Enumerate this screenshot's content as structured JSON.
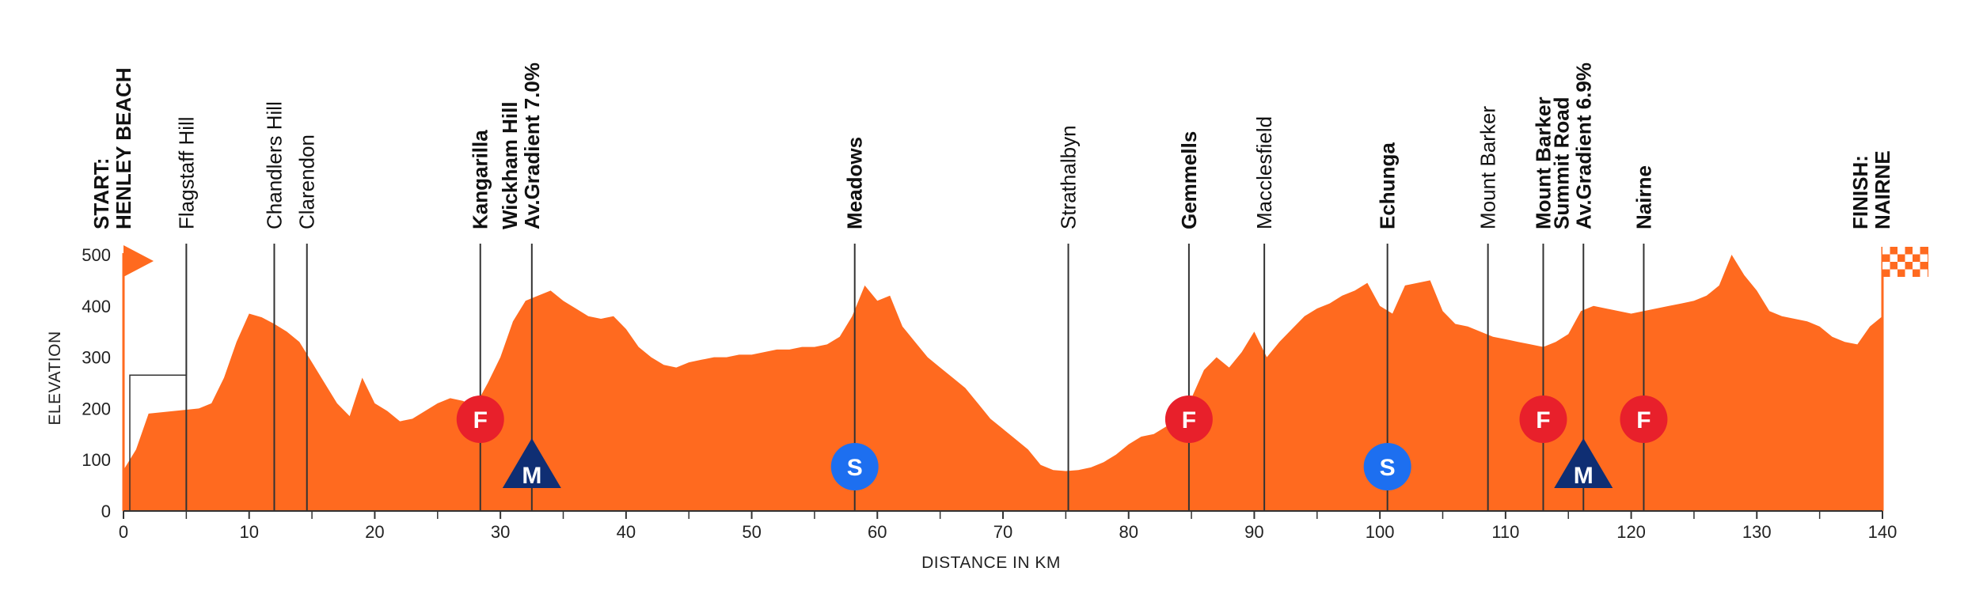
{
  "chart_data": {
    "type": "area",
    "xlabel": "DISTANCE IN KM",
    "ylabel": "ELEVATION",
    "xlim": [
      0,
      140
    ],
    "ylim": [
      0,
      500
    ],
    "xticks": [
      0,
      10,
      20,
      30,
      40,
      50,
      60,
      70,
      80,
      90,
      100,
      110,
      120,
      130,
      140
    ],
    "yticks": [
      0,
      100,
      200,
      300,
      400,
      500
    ],
    "grid": "horizontal",
    "colors": {
      "fill": "#ff6a1f",
      "line": "#333333",
      "sprint": "#e8202b",
      "kom": "#0f2e73",
      "feed": "#1d6ff0"
    },
    "profile": [
      [
        0,
        80
      ],
      [
        1,
        120
      ],
      [
        2,
        190
      ],
      [
        4,
        195
      ],
      [
        6,
        200
      ],
      [
        7,
        210
      ],
      [
        8,
        260
      ],
      [
        9,
        330
      ],
      [
        10,
        385
      ],
      [
        11,
        378
      ],
      [
        12,
        365
      ],
      [
        13,
        350
      ],
      [
        14,
        330
      ],
      [
        15,
        290
      ],
      [
        16,
        250
      ],
      [
        17,
        210
      ],
      [
        18,
        185
      ],
      [
        19,
        260
      ],
      [
        20,
        210
      ],
      [
        21,
        195
      ],
      [
        22,
        175
      ],
      [
        23,
        180
      ],
      [
        24,
        195
      ],
      [
        25,
        210
      ],
      [
        26,
        220
      ],
      [
        27,
        215
      ],
      [
        28,
        205
      ],
      [
        29,
        250
      ],
      [
        30,
        300
      ],
      [
        31,
        370
      ],
      [
        32,
        410
      ],
      [
        33,
        420
      ],
      [
        34,
        430
      ],
      [
        35,
        410
      ],
      [
        36,
        395
      ],
      [
        37,
        380
      ],
      [
        38,
        375
      ],
      [
        39,
        380
      ],
      [
        40,
        355
      ],
      [
        41,
        320
      ],
      [
        42,
        300
      ],
      [
        43,
        285
      ],
      [
        44,
        280
      ],
      [
        45,
        290
      ],
      [
        46,
        295
      ],
      [
        47,
        300
      ],
      [
        48,
        300
      ],
      [
        49,
        305
      ],
      [
        50,
        305
      ],
      [
        51,
        310
      ],
      [
        52,
        315
      ],
      [
        53,
        315
      ],
      [
        54,
        320
      ],
      [
        55,
        320
      ],
      [
        56,
        325
      ],
      [
        57,
        340
      ],
      [
        58,
        380
      ],
      [
        59,
        440
      ],
      [
        60,
        410
      ],
      [
        61,
        420
      ],
      [
        62,
        360
      ],
      [
        63,
        330
      ],
      [
        64,
        300
      ],
      [
        65,
        280
      ],
      [
        66,
        260
      ],
      [
        67,
        240
      ],
      [
        68,
        210
      ],
      [
        69,
        180
      ],
      [
        70,
        160
      ],
      [
        71,
        140
      ],
      [
        72,
        120
      ],
      [
        73,
        90
      ],
      [
        74,
        80
      ],
      [
        75,
        78
      ],
      [
        76,
        80
      ],
      [
        77,
        85
      ],
      [
        78,
        95
      ],
      [
        79,
        110
      ],
      [
        80,
        130
      ],
      [
        81,
        145
      ],
      [
        82,
        150
      ],
      [
        83,
        165
      ],
      [
        84,
        185
      ],
      [
        85,
        220
      ],
      [
        86,
        275
      ],
      [
        87,
        300
      ],
      [
        88,
        280
      ],
      [
        89,
        310
      ],
      [
        90,
        350
      ],
      [
        91,
        300
      ],
      [
        92,
        330
      ],
      [
        93,
        355
      ],
      [
        94,
        380
      ],
      [
        95,
        395
      ],
      [
        96,
        405
      ],
      [
        97,
        420
      ],
      [
        98,
        430
      ],
      [
        99,
        445
      ],
      [
        100,
        400
      ],
      [
        101,
        385
      ],
      [
        102,
        440
      ],
      [
        103,
        445
      ],
      [
        104,
        450
      ],
      [
        105,
        390
      ],
      [
        106,
        365
      ],
      [
        107,
        360
      ],
      [
        108,
        350
      ],
      [
        109,
        340
      ],
      [
        110,
        335
      ],
      [
        111,
        330
      ],
      [
        112,
        325
      ],
      [
        113,
        320
      ],
      [
        114,
        330
      ],
      [
        115,
        345
      ],
      [
        116,
        390
      ],
      [
        117,
        400
      ],
      [
        118,
        395
      ],
      [
        119,
        390
      ],
      [
        120,
        385
      ],
      [
        121,
        390
      ],
      [
        122,
        395
      ],
      [
        123,
        400
      ],
      [
        124,
        405
      ],
      [
        125,
        410
      ],
      [
        126,
        420
      ],
      [
        127,
        440
      ],
      [
        128,
        500
      ],
      [
        129,
        460
      ],
      [
        130,
        430
      ],
      [
        131,
        390
      ],
      [
        132,
        380
      ],
      [
        133,
        375
      ],
      [
        134,
        370
      ],
      [
        135,
        360
      ],
      [
        136,
        340
      ],
      [
        137,
        330
      ],
      [
        138,
        325
      ],
      [
        139,
        360
      ],
      [
        140,
        380
      ]
    ],
    "locations": [
      {
        "km": 5,
        "lines": [
          "Flagstaff Hill"
        ],
        "bold": false
      },
      {
        "km": 12,
        "lines": [
          "Chandlers Hill"
        ],
        "bold": false
      },
      {
        "km": 14.6,
        "lines": [
          "Clarendon"
        ],
        "bold": false
      },
      {
        "km": 28.4,
        "lines": [
          "Kangarilla"
        ],
        "bold": true
      },
      {
        "km": 32.5,
        "lines": [
          "Wickham Hill",
          "Av.Gradient 7.0%"
        ],
        "bold": true
      },
      {
        "km": 58.2,
        "lines": [
          "Meadows"
        ],
        "bold": true
      },
      {
        "km": 75.2,
        "lines": [
          "Strathalbyn"
        ],
        "bold": false
      },
      {
        "km": 84.8,
        "lines": [
          "Gemmells"
        ],
        "bold": true
      },
      {
        "km": 90.8,
        "lines": [
          "Macclesfield"
        ],
        "bold": false
      },
      {
        "km": 100.6,
        "lines": [
          "Echunga"
        ],
        "bold": true
      },
      {
        "km": 108.6,
        "lines": [
          "Mount Barker"
        ],
        "bold": false
      },
      {
        "km": 113,
        "lines": [
          "Mount Barker"
        ],
        "bold": true
      },
      {
        "km": 116.2,
        "lines": [
          "Summit Road",
          "Av.Gradient 6.9%"
        ],
        "bold": true
      },
      {
        "km": 121,
        "lines": [
          "Nairne"
        ],
        "bold": true
      }
    ],
    "start": {
      "km": 0,
      "lines": [
        "START:",
        "HENLEY BEACH"
      ]
    },
    "finish": {
      "km": 140,
      "lines": [
        "FINISH:",
        "NAIRNE"
      ]
    },
    "markers": [
      {
        "km": 28.4,
        "type": "sprint",
        "label": "F"
      },
      {
        "km": 84.8,
        "type": "sprint",
        "label": "F"
      },
      {
        "km": 113,
        "type": "sprint",
        "label": "F"
      },
      {
        "km": 121,
        "type": "sprint",
        "label": "F"
      },
      {
        "km": 32.5,
        "type": "kom",
        "label": "M"
      },
      {
        "km": 116.2,
        "type": "kom",
        "label": "M"
      },
      {
        "km": 58.2,
        "type": "feed",
        "label": "S"
      },
      {
        "km": 100.6,
        "type": "feed",
        "label": "S"
      }
    ]
  }
}
